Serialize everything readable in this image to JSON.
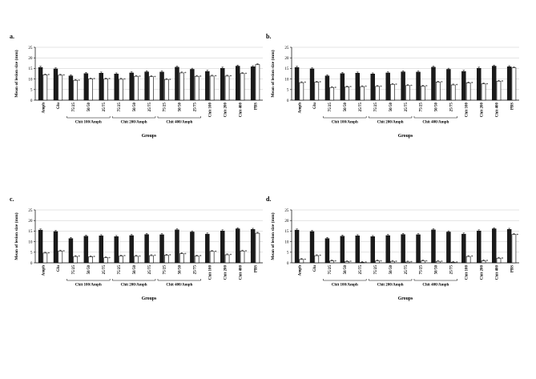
{
  "colors": {
    "black_bar": "#1a1a1a",
    "white_bar": "#ffffff",
    "axis": "#000000",
    "grid": "#c8c8c8"
  },
  "chart_data": [
    {
      "type": "bar",
      "panel": "a.",
      "ylabel": "Mean of lesion size (mm)",
      "xlabel": "Groups",
      "ylim": [
        0,
        25
      ],
      "yticks": [
        0,
        5,
        10,
        15,
        20,
        25
      ],
      "grid": true,
      "categories": [
        "Amph",
        "Glu",
        "75/25",
        "50/50",
        "25/75",
        "75/25",
        "50/50",
        "25/75",
        "75/25",
        "50/50",
        "25/75",
        "Chit 100",
        "Chit 200",
        "Chit 400",
        "PBS"
      ],
      "groups": [
        {
          "label": "Chit 100/Amph",
          "from": 2,
          "to": 4
        },
        {
          "label": "Chit 200/Amph",
          "from": 5,
          "to": 7
        },
        {
          "label": "Chit 400/Amph",
          "from": 8,
          "to": 10
        }
      ],
      "series": [
        {
          "values": [
            15.5,
            14.8,
            11.5,
            12.6,
            12.8,
            12.4,
            12.9,
            13.4,
            13.3,
            15.6,
            14.6,
            13.6,
            15.1,
            16.1,
            15.8
          ]
        },
        {
          "values": [
            12.0,
            11.8,
            9.4,
            10.1,
            10.0,
            9.9,
            11.3,
            11.1,
            9.8,
            12.9,
            11.3,
            11.4,
            11.4,
            12.6,
            16.8
          ]
        }
      ],
      "stars": [
        true,
        true,
        true,
        true,
        true,
        true,
        true,
        true,
        true,
        true,
        true,
        true,
        true,
        true,
        false
      ]
    },
    {
      "type": "bar",
      "panel": "b.",
      "ylabel": "Mean of lesion size (mm)",
      "xlabel": "Groups",
      "ylim": [
        0,
        25
      ],
      "yticks": [
        0,
        5,
        10,
        15,
        20,
        25
      ],
      "grid": true,
      "categories": [
        "Amph",
        "Glu",
        "75/25",
        "50/50",
        "25/75",
        "75/25",
        "50/50",
        "25/75",
        "75/25",
        "50/50",
        "25/75",
        "Chit 100",
        "Chit 200",
        "Chit 400",
        "PBS"
      ],
      "groups": [
        {
          "label": "Chit 100/Amph",
          "from": 2,
          "to": 4
        },
        {
          "label": "Chit 200/Amph",
          "from": 5,
          "to": 7
        },
        {
          "label": "Chit 400/Amph",
          "from": 8,
          "to": 10
        }
      ],
      "series": [
        {
          "values": [
            15.5,
            14.8,
            11.5,
            12.6,
            12.8,
            12.4,
            12.9,
            13.4,
            13.3,
            15.6,
            14.6,
            13.6,
            15.1,
            16.1,
            15.8
          ]
        },
        {
          "values": [
            8.3,
            8.5,
            6.0,
            6.3,
            6.4,
            6.5,
            7.5,
            6.9,
            6.6,
            8.6,
            7.2,
            8.2,
            7.7,
            9.0,
            15.3
          ]
        }
      ],
      "stars": [
        true,
        true,
        true,
        true,
        true,
        true,
        true,
        true,
        true,
        true,
        true,
        true,
        true,
        true,
        false
      ]
    },
    {
      "type": "bar",
      "panel": "c.",
      "ylabel": "Mean of lesion size (mm)",
      "xlabel": "Groups",
      "ylim": [
        0,
        25
      ],
      "yticks": [
        0,
        5,
        10,
        15,
        20,
        25
      ],
      "grid": true,
      "categories": [
        "Amph",
        "Glu",
        "75/25",
        "50/50",
        "25/75",
        "75/25",
        "50/50",
        "25/75",
        "75/25",
        "50/50",
        "25/75",
        "Chit 100",
        "Chit 200",
        "Chit 400",
        "PBS"
      ],
      "groups": [
        {
          "label": "Chit 100/Amph",
          "from": 2,
          "to": 4
        },
        {
          "label": "Chit 200/Amph",
          "from": 5,
          "to": 7
        },
        {
          "label": "Chit 400/Amph",
          "from": 8,
          "to": 10
        }
      ],
      "series": [
        {
          "values": [
            15.5,
            14.8,
            11.5,
            12.6,
            12.8,
            12.4,
            12.9,
            13.4,
            13.3,
            15.6,
            14.6,
            13.6,
            15.1,
            16.1,
            15.8
          ]
        },
        {
          "values": [
            4.6,
            5.6,
            3.0,
            2.9,
            2.4,
            3.2,
            3.1,
            3.4,
            3.6,
            4.3,
            3.2,
            5.4,
            3.8,
            5.6,
            14.0
          ]
        }
      ],
      "stars": [
        true,
        true,
        true,
        true,
        true,
        true,
        true,
        true,
        true,
        true,
        true,
        true,
        true,
        true,
        false
      ]
    },
    {
      "type": "bar",
      "panel": "d.",
      "ylabel": "Mean of lesion size (mm)",
      "xlabel": "Groups",
      "ylim": [
        0,
        25
      ],
      "yticks": [
        0,
        5,
        10,
        15,
        20,
        25
      ],
      "grid": true,
      "categories": [
        "Amph",
        "Glu",
        "75/25",
        "50/50",
        "25/75",
        "75/25",
        "50/50",
        "25/75",
        "75/25",
        "50/50",
        "25/75",
        "Chit 100",
        "Chit 200",
        "Chit 400",
        "PBS"
      ],
      "groups": [
        {
          "label": "Chit 100/Amph",
          "from": 2,
          "to": 4
        },
        {
          "label": "Chit 200/Amph",
          "from": 5,
          "to": 7
        },
        {
          "label": "Chit 400/Amph",
          "from": 8,
          "to": 10
        }
      ],
      "series": [
        {
          "values": [
            15.5,
            14.8,
            11.5,
            12.6,
            12.8,
            12.4,
            12.9,
            13.4,
            13.3,
            15.6,
            14.6,
            13.6,
            15.1,
            16.1,
            15.8
          ]
        },
        {
          "values": [
            1.6,
            3.4,
            0.9,
            0.6,
            0.2,
            0.9,
            0.7,
            0.4,
            0.9,
            0.7,
            0.3,
            3.0,
            1.0,
            2.2,
            13.4
          ]
        }
      ],
      "stars": [
        true,
        true,
        true,
        true,
        true,
        true,
        true,
        true,
        true,
        true,
        true,
        true,
        true,
        true,
        true
      ]
    }
  ]
}
